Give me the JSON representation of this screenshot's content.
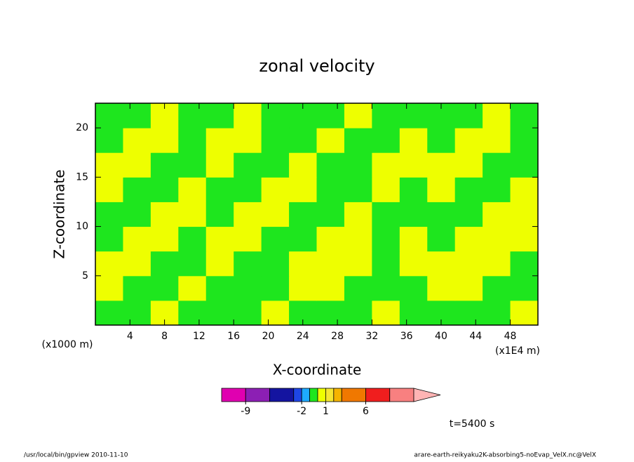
{
  "chart_data": {
    "type": "contour",
    "title": "zonal velocity",
    "x_label": "X-coordinate",
    "y_label": "Z-coordinate",
    "y_unit": "(x1000 m)",
    "x_unit": "(x1E4 m)",
    "time_label": "t=5400 s",
    "footer_left": "/usr/local/bin/gpview   2010-11-10",
    "footer_right": "arare-earth-reikyaku2K-absorbing5-noEvap_VelX.nc@VelX",
    "xlim": [
      0,
      51.2
    ],
    "ylim": [
      0,
      22.5
    ],
    "xticks": [
      4,
      8,
      12,
      16,
      20,
      24,
      28,
      32,
      36,
      40,
      44,
      48
    ],
    "yticks": [
      5,
      10,
      15,
      20
    ],
    "levels": [
      -12,
      -9,
      -6,
      -3,
      -2,
      -1,
      0,
      1,
      2,
      3,
      6,
      9,
      12
    ],
    "level_colors": [
      "#e000b0",
      "#8c1fb4",
      "#1414a0",
      "#1e46e6",
      "#1eaaff",
      "#1ee61e",
      "#eeff00",
      "#f5e632",
      "#f5b400",
      "#f07800",
      "#f01e1e",
      "#f88080"
    ],
    "extend_color": "#ffb4b4",
    "colorbar_ticks": [
      -9,
      -2,
      1,
      6
    ],
    "z": [
      [
        -0.5,
        -0.5,
        0.5,
        -0.5,
        -0.5,
        -0.5,
        0.5,
        -0.5,
        -0.5,
        -0.5,
        0.5,
        -0.5,
        -0.5,
        -0.5,
        -0.5,
        0.5
      ],
      [
        0.5,
        -0.5,
        -0.5,
        0.5,
        -0.5,
        -0.5,
        -0.5,
        0.5,
        0.5,
        -0.5,
        -0.5,
        -0.5,
        0.5,
        0.5,
        -0.5,
        -0.5
      ],
      [
        0.5,
        0.5,
        -0.5,
        -0.5,
        0.5,
        -0.5,
        -0.5,
        0.5,
        0.5,
        0.5,
        -0.5,
        0.5,
        0.5,
        0.5,
        0.5,
        -0.5
      ],
      [
        -0.5,
        0.5,
        0.5,
        -0.5,
        0.5,
        0.5,
        -0.5,
        -0.5,
        0.5,
        0.5,
        -0.5,
        0.5,
        -0.5,
        0.5,
        0.5,
        0.5
      ],
      [
        -0.5,
        -0.5,
        0.5,
        0.5,
        -0.5,
        0.5,
        0.5,
        -0.5,
        -0.5,
        0.5,
        -0.5,
        -0.5,
        -0.5,
        -0.5,
        0.5,
        0.5
      ],
      [
        0.5,
        -0.5,
        -0.5,
        0.5,
        -0.5,
        -0.5,
        0.5,
        0.5,
        -0.5,
        -0.5,
        0.5,
        -0.5,
        0.5,
        -0.5,
        -0.5,
        0.5
      ],
      [
        0.5,
        0.5,
        -0.5,
        -0.5,
        0.5,
        -0.5,
        -0.5,
        0.5,
        -0.5,
        -0.5,
        0.5,
        0.5,
        0.5,
        0.5,
        -0.5,
        -0.5
      ],
      [
        -0.5,
        0.5,
        0.5,
        -0.5,
        0.5,
        0.5,
        -0.5,
        -0.5,
        0.5,
        -0.5,
        -0.5,
        0.5,
        -0.5,
        0.5,
        0.5,
        -0.5
      ],
      [
        -0.5,
        -0.5,
        0.5,
        -0.5,
        -0.5,
        0.5,
        -0.5,
        -0.5,
        -0.5,
        0.5,
        -0.5,
        -0.5,
        -0.5,
        -0.5,
        0.5,
        -0.5
      ]
    ]
  }
}
